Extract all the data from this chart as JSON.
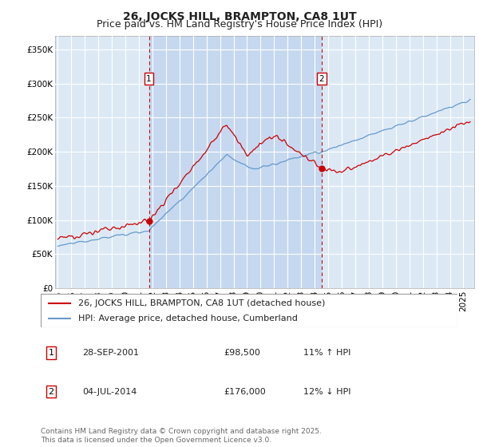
{
  "title": "26, JOCKS HILL, BRAMPTON, CA8 1UT",
  "subtitle": "Price paid vs. HM Land Registry's House Price Index (HPI)",
  "ylabel_ticks": [
    "£0",
    "£50K",
    "£100K",
    "£150K",
    "£200K",
    "£250K",
    "£300K",
    "£350K"
  ],
  "ytick_values": [
    0,
    50000,
    100000,
    150000,
    200000,
    250000,
    300000,
    350000
  ],
  "ylim": [
    0,
    370000
  ],
  "xlim_start": 1994.8,
  "xlim_end": 2025.8,
  "bg_color": "#dce9f5",
  "shade_color": "#c5d8f0",
  "grid_color": "#ffffff",
  "red_line_color": "#cc0000",
  "blue_line_color": "#6699cc",
  "sale1_x": 2001.74,
  "sale1_y": 98500,
  "sale2_x": 2014.5,
  "sale2_y": 176000,
  "legend_label_red": "26, JOCKS HILL, BRAMPTON, CA8 1UT (detached house)",
  "legend_label_blue": "HPI: Average price, detached house, Cumberland",
  "table_entries": [
    {
      "num": "1",
      "date": "28-SEP-2001",
      "price": "£98,500",
      "hpi": "11% ↑ HPI"
    },
    {
      "num": "2",
      "date": "04-JUL-2014",
      "price": "£176,000",
      "hpi": "12% ↓ HPI"
    }
  ],
  "footnote": "Contains HM Land Registry data © Crown copyright and database right 2025.\nThis data is licensed under the Open Government Licence v3.0.",
  "title_fontsize": 10,
  "subtitle_fontsize": 9,
  "tick_fontsize": 7.5,
  "legend_fontsize": 8,
  "table_fontsize": 8,
  "footnote_fontsize": 6.5
}
